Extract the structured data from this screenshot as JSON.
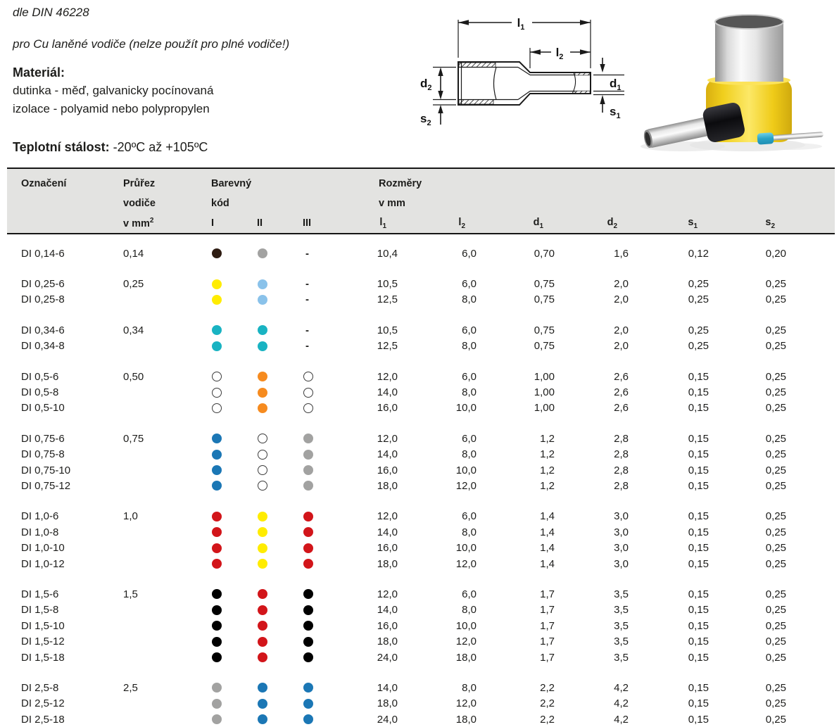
{
  "page": {
    "standard_note": "dle DIN 46228",
    "usage_note": "pro Cu laněné vodiče (nelze použít pro plné vodiče!)",
    "material_heading": "Materiál:",
    "material_line1": "dutinka - měď, galvanicky pocínovaná",
    "material_line2": "izolace - polyamid nebo polypropylen",
    "temperature_label": "Teplotní stálost:",
    "temperature_value": " -20ºC až +105ºC"
  },
  "diagram": {
    "labels": [
      {
        "base": "l",
        "sub": "1"
      },
      {
        "base": "l",
        "sub": "2"
      },
      {
        "base": "d",
        "sub": "2"
      },
      {
        "base": "s",
        "sub": "2"
      },
      {
        "base": "d",
        "sub": "1"
      },
      {
        "base": "s",
        "sub": "1"
      }
    ]
  },
  "photo": {
    "items": [
      "yellow-ferrule-large",
      "black-ferrule-medium",
      "blue-ferrule-small"
    ]
  },
  "table": {
    "headers": {
      "designation": "Označení",
      "cross_line1": "Průřez",
      "cross_line2": "vodiče",
      "cross_line3_base": "v mm",
      "cross_line3_sup": "2",
      "color_line1": "Barevný",
      "color_line2": "kód",
      "color_cols": [
        "I",
        "II",
        "III"
      ],
      "dims_line1": "Rozměry",
      "dims_line2": "v mm",
      "dim_cols": [
        {
          "base": "l",
          "sub": "1"
        },
        {
          "base": "l",
          "sub": "2"
        },
        {
          "base": "d",
          "sub": "1"
        },
        {
          "base": "d",
          "sub": "2"
        },
        {
          "base": "s",
          "sub": "1"
        },
        {
          "base": "s",
          "sub": "2"
        }
      ]
    },
    "palette": {
      "blackbrown": "#2e1c12",
      "grey": "#a2a2a1",
      "yellow": "#ffec00",
      "lightblue": "#8ac2ea",
      "teal": "#19b3c2",
      "white": "#ffffff",
      "orange": "#f68b1f",
      "blue": "#1b77b5",
      "red": "#d2151a",
      "black": "#000000"
    },
    "groups": [
      {
        "cross_section": "0,14",
        "rows": [
          {
            "name": "DI 0,14-6",
            "dots": [
              "blackbrown",
              "grey",
              "-"
            ],
            "dims": [
              "10,4",
              "6,0",
              "0,70",
              "1,6",
              "0,12",
              "0,20"
            ]
          }
        ]
      },
      {
        "cross_section": "0,25",
        "rows": [
          {
            "name": "DI 0,25-6",
            "dots": [
              "yellow",
              "lightblue",
              "-"
            ],
            "dims": [
              "10,5",
              "6,0",
              "0,75",
              "2,0",
              "0,25",
              "0,25"
            ]
          },
          {
            "name": "DI 0,25-8",
            "dots": [
              "yellow",
              "lightblue",
              "-"
            ],
            "dims": [
              "12,5",
              "8,0",
              "0,75",
              "2,0",
              "0,25",
              "0,25"
            ]
          }
        ]
      },
      {
        "cross_section": "0,34",
        "rows": [
          {
            "name": "DI 0,34-6",
            "dots": [
              "teal",
              "teal",
              "-"
            ],
            "dims": [
              "10,5",
              "6,0",
              "0,75",
              "2,0",
              "0,25",
              "0,25"
            ]
          },
          {
            "name": "DI 0,34-8",
            "dots": [
              "teal",
              "teal",
              "-"
            ],
            "dims": [
              "12,5",
              "8,0",
              "0,75",
              "2,0",
              "0,25",
              "0,25"
            ]
          }
        ]
      },
      {
        "cross_section": "0,50",
        "rows": [
          {
            "name": "DI 0,5-6",
            "dots": [
              "white",
              "orange",
              "white"
            ],
            "dims": [
              "12,0",
              "6,0",
              "1,00",
              "2,6",
              "0,15",
              "0,25"
            ]
          },
          {
            "name": "DI 0,5-8",
            "dots": [
              "white",
              "orange",
              "white"
            ],
            "dims": [
              "14,0",
              "8,0",
              "1,00",
              "2,6",
              "0,15",
              "0,25"
            ]
          },
          {
            "name": "DI 0,5-10",
            "dots": [
              "white",
              "orange",
              "white"
            ],
            "dims": [
              "16,0",
              "10,0",
              "1,00",
              "2,6",
              "0,15",
              "0,25"
            ]
          }
        ]
      },
      {
        "cross_section": "0,75",
        "rows": [
          {
            "name": "DI 0,75-6",
            "dots": [
              "blue",
              "white",
              "grey"
            ],
            "dims": [
              "12,0",
              "6,0",
              "1,2",
              "2,8",
              "0,15",
              "0,25"
            ]
          },
          {
            "name": "DI 0,75-8",
            "dots": [
              "blue",
              "white",
              "grey"
            ],
            "dims": [
              "14,0",
              "8,0",
              "1,2",
              "2,8",
              "0,15",
              "0,25"
            ]
          },
          {
            "name": "DI 0,75-10",
            "dots": [
              "blue",
              "white",
              "grey"
            ],
            "dims": [
              "16,0",
              "10,0",
              "1,2",
              "2,8",
              "0,15",
              "0,25"
            ]
          },
          {
            "name": "DI 0,75-12",
            "dots": [
              "blue",
              "white",
              "grey"
            ],
            "dims": [
              "18,0",
              "12,0",
              "1,2",
              "2,8",
              "0,15",
              "0,25"
            ]
          }
        ]
      },
      {
        "cross_section": "1,0",
        "rows": [
          {
            "name": "DI 1,0-6",
            "dots": [
              "red",
              "yellow",
              "red"
            ],
            "dims": [
              "12,0",
              "6,0",
              "1,4",
              "3,0",
              "0,15",
              "0,25"
            ]
          },
          {
            "name": "DI 1,0-8",
            "dots": [
              "red",
              "yellow",
              "red"
            ],
            "dims": [
              "14,0",
              "8,0",
              "1,4",
              "3,0",
              "0,15",
              "0,25"
            ]
          },
          {
            "name": "DI 1,0-10",
            "dots": [
              "red",
              "yellow",
              "red"
            ],
            "dims": [
              "16,0",
              "10,0",
              "1,4",
              "3,0",
              "0,15",
              "0,25"
            ]
          },
          {
            "name": "DI 1,0-12",
            "dots": [
              "red",
              "yellow",
              "red"
            ],
            "dims": [
              "18,0",
              "12,0",
              "1,4",
              "3,0",
              "0,15",
              "0,25"
            ]
          }
        ]
      },
      {
        "cross_section": "1,5",
        "rows": [
          {
            "name": "DI 1,5-6",
            "dots": [
              "black",
              "red",
              "black"
            ],
            "dims": [
              "12,0",
              "6,0",
              "1,7",
              "3,5",
              "0,15",
              "0,25"
            ]
          },
          {
            "name": "DI 1,5-8",
            "dots": [
              "black",
              "red",
              "black"
            ],
            "dims": [
              "14,0",
              "8,0",
              "1,7",
              "3,5",
              "0,15",
              "0,25"
            ]
          },
          {
            "name": "DI 1,5-10",
            "dots": [
              "black",
              "red",
              "black"
            ],
            "dims": [
              "16,0",
              "10,0",
              "1,7",
              "3,5",
              "0,15",
              "0,25"
            ]
          },
          {
            "name": "DI 1,5-12",
            "dots": [
              "black",
              "red",
              "black"
            ],
            "dims": [
              "18,0",
              "12,0",
              "1,7",
              "3,5",
              "0,15",
              "0,25"
            ]
          },
          {
            "name": "DI 1,5-18",
            "dots": [
              "black",
              "red",
              "black"
            ],
            "dims": [
              "24,0",
              "18,0",
              "1,7",
              "3,5",
              "0,15",
              "0,25"
            ]
          }
        ]
      },
      {
        "cross_section": "2,5",
        "rows": [
          {
            "name": "DI 2,5-8",
            "dots": [
              "grey",
              "blue",
              "blue"
            ],
            "dims": [
              "14,0",
              "8,0",
              "2,2",
              "4,2",
              "0,15",
              "0,25"
            ]
          },
          {
            "name": "DI 2,5-12",
            "dots": [
              "grey",
              "blue",
              "blue"
            ],
            "dims": [
              "18,0",
              "12,0",
              "2,2",
              "4,2",
              "0,15",
              "0,25"
            ]
          },
          {
            "name": "DI 2,5-18",
            "dots": [
              "grey",
              "blue",
              "blue"
            ],
            "dims": [
              "24,0",
              "18,0",
              "2,2",
              "4,2",
              "0,15",
              "0,25"
            ]
          }
        ]
      }
    ]
  }
}
